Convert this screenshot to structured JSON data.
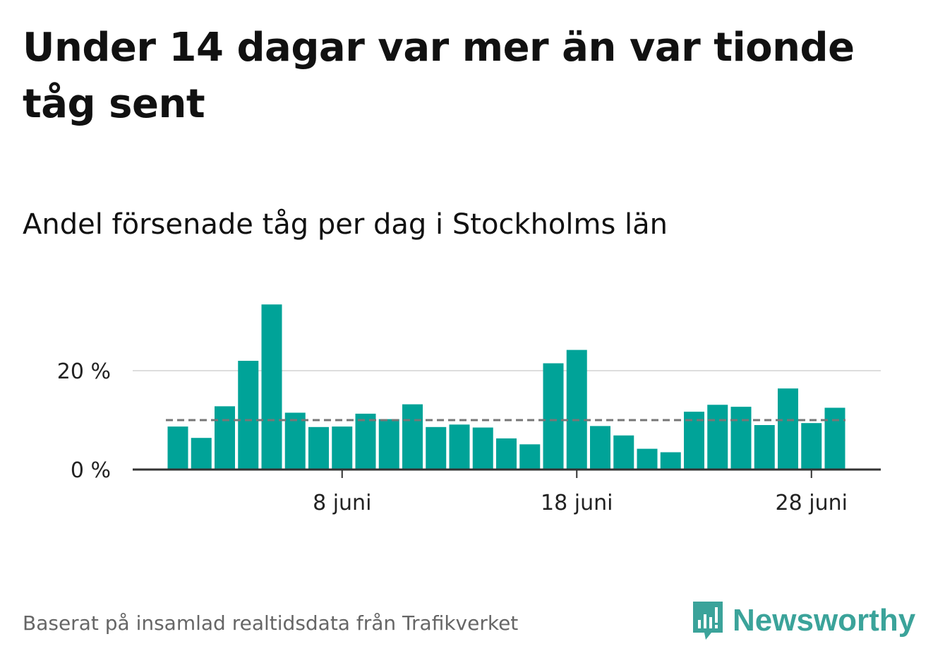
{
  "title": "Under 14 dagar var mer än var tionde tåg sent",
  "subtitle": "Andel försenade tåg per dag i Stockholms län",
  "footer": "Baserat på insamlad realtidsdata från Trafikverket",
  "logo": {
    "text": "Newsworthy",
    "icon": "newsworthy-bars-icon"
  },
  "colors": {
    "bar": "#00a398",
    "grid": "#dddddd",
    "axis": "#333333",
    "reference_line": "#777777",
    "logo": "#3ba39a"
  },
  "chart_data": {
    "type": "bar",
    "x_start_day": 1,
    "categories": [
      "1 juni",
      "2 juni",
      "3 juni",
      "4 juni",
      "5 juni",
      "6 juni",
      "7 juni",
      "8 juni",
      "9 juni",
      "10 juni",
      "11 juni",
      "12 juni",
      "13 juni",
      "14 juni",
      "15 juni",
      "16 juni",
      "17 juni",
      "18 juni",
      "19 juni",
      "20 juni",
      "21 juni",
      "22 juni",
      "23 juni",
      "24 juni",
      "25 juni",
      "26 juni",
      "27 juni",
      "28 juni",
      "29 juni"
    ],
    "values": [
      8.7,
      6.4,
      12.8,
      22.0,
      33.4,
      11.5,
      8.6,
      8.7,
      11.3,
      10.2,
      13.2,
      8.6,
      9.1,
      8.5,
      6.3,
      5.1,
      21.5,
      24.2,
      8.8,
      6.9,
      4.2,
      3.5,
      11.7,
      13.1,
      12.7,
      9.0,
      16.4,
      9.4,
      12.5
    ],
    "reference_line": 10,
    "y_ticks": [
      {
        "value": 0,
        "label": "0 %"
      },
      {
        "value": 20,
        "label": "20 %"
      }
    ],
    "x_ticks": [
      {
        "day": 8,
        "label": "8 juni"
      },
      {
        "day": 18,
        "label": "18 juni"
      },
      {
        "day": 28,
        "label": "28 juni"
      }
    ],
    "ylim": [
      0,
      35
    ],
    "grid": true,
    "legend": "none"
  }
}
